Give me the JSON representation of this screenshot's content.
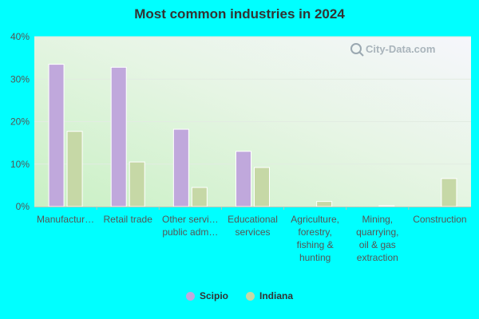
{
  "watermark": "City-Data.com",
  "chart_data": {
    "type": "bar",
    "title": "Most common industries in 2024",
    "categories": [
      [
        "Manufactur…"
      ],
      [
        "Retail trade"
      ],
      [
        "Other servi…",
        "public adm…"
      ],
      [
        "Educational",
        "services"
      ],
      [
        "Agriculture,",
        "forestry,",
        "fishing &",
        "hunting"
      ],
      [
        "Mining,",
        "quarrying,",
        "oil & gas",
        "extraction"
      ],
      [
        "Construction"
      ]
    ],
    "series": [
      {
        "name": "Scipio",
        "values": [
          33.5,
          32.8,
          18.2,
          13.0,
          0,
          0,
          0
        ],
        "color": "#c0a8dc"
      },
      {
        "name": "Indiana",
        "values": [
          17.7,
          10.5,
          4.5,
          9.2,
          1.2,
          0.2,
          6.6
        ],
        "color": "#c6d8a6"
      }
    ],
    "yticks": [
      "0%",
      "10%",
      "20%",
      "30%",
      "40%"
    ],
    "ylim": [
      0,
      40
    ],
    "grid": true,
    "legend_position": "bottom"
  }
}
